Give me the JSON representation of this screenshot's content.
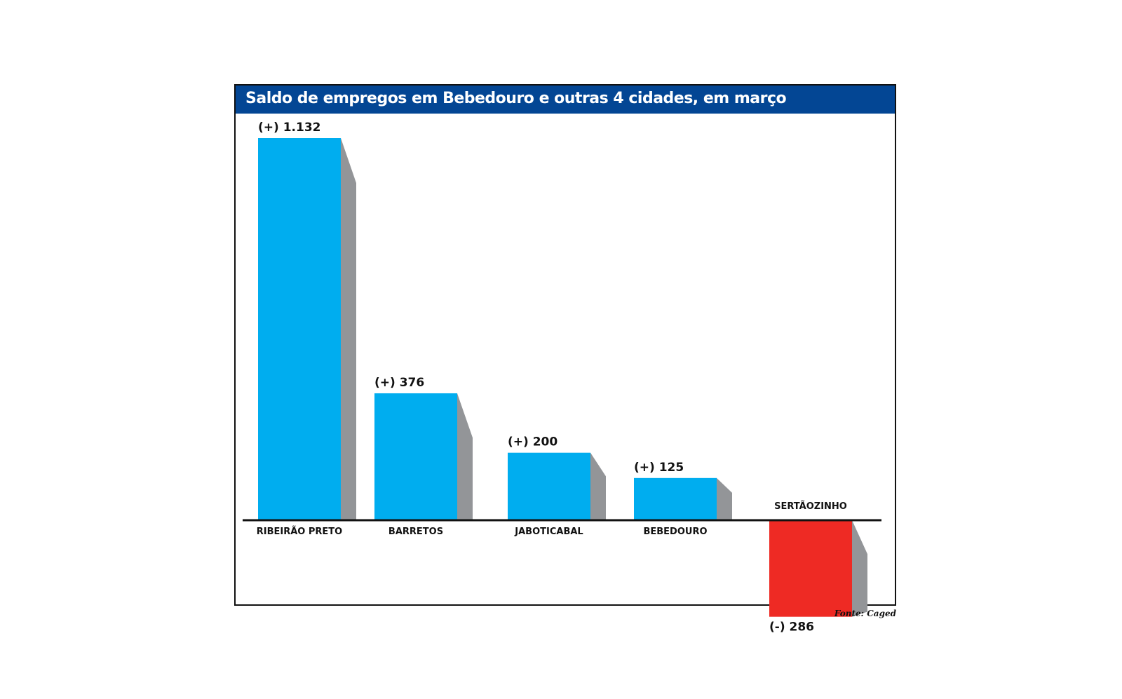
{
  "chart_data": {
    "type": "bar",
    "title": "Saldo de empregos em Bebedouro e outras 4 cidades, em março",
    "categories": [
      "RIBEIRÃO PRETO",
      "BARRETOS",
      "JABOTICABAL",
      "BEBEDOURO",
      "SERTÃOZINHO"
    ],
    "values": [
      1132,
      376,
      200,
      125,
      -286
    ],
    "value_labels": [
      "(+) 1.132",
      "(+) 376",
      "(+) 200",
      "(+) 125",
      "(-) 286"
    ],
    "xlabel": "",
    "ylabel": "",
    "grid": false,
    "source": "Fonte: Caged"
  },
  "colors": {
    "title_bar": "#034694",
    "positive": "#00adef",
    "negative": "#ee2a24",
    "shadow": "#939598",
    "axis": "#111111"
  }
}
